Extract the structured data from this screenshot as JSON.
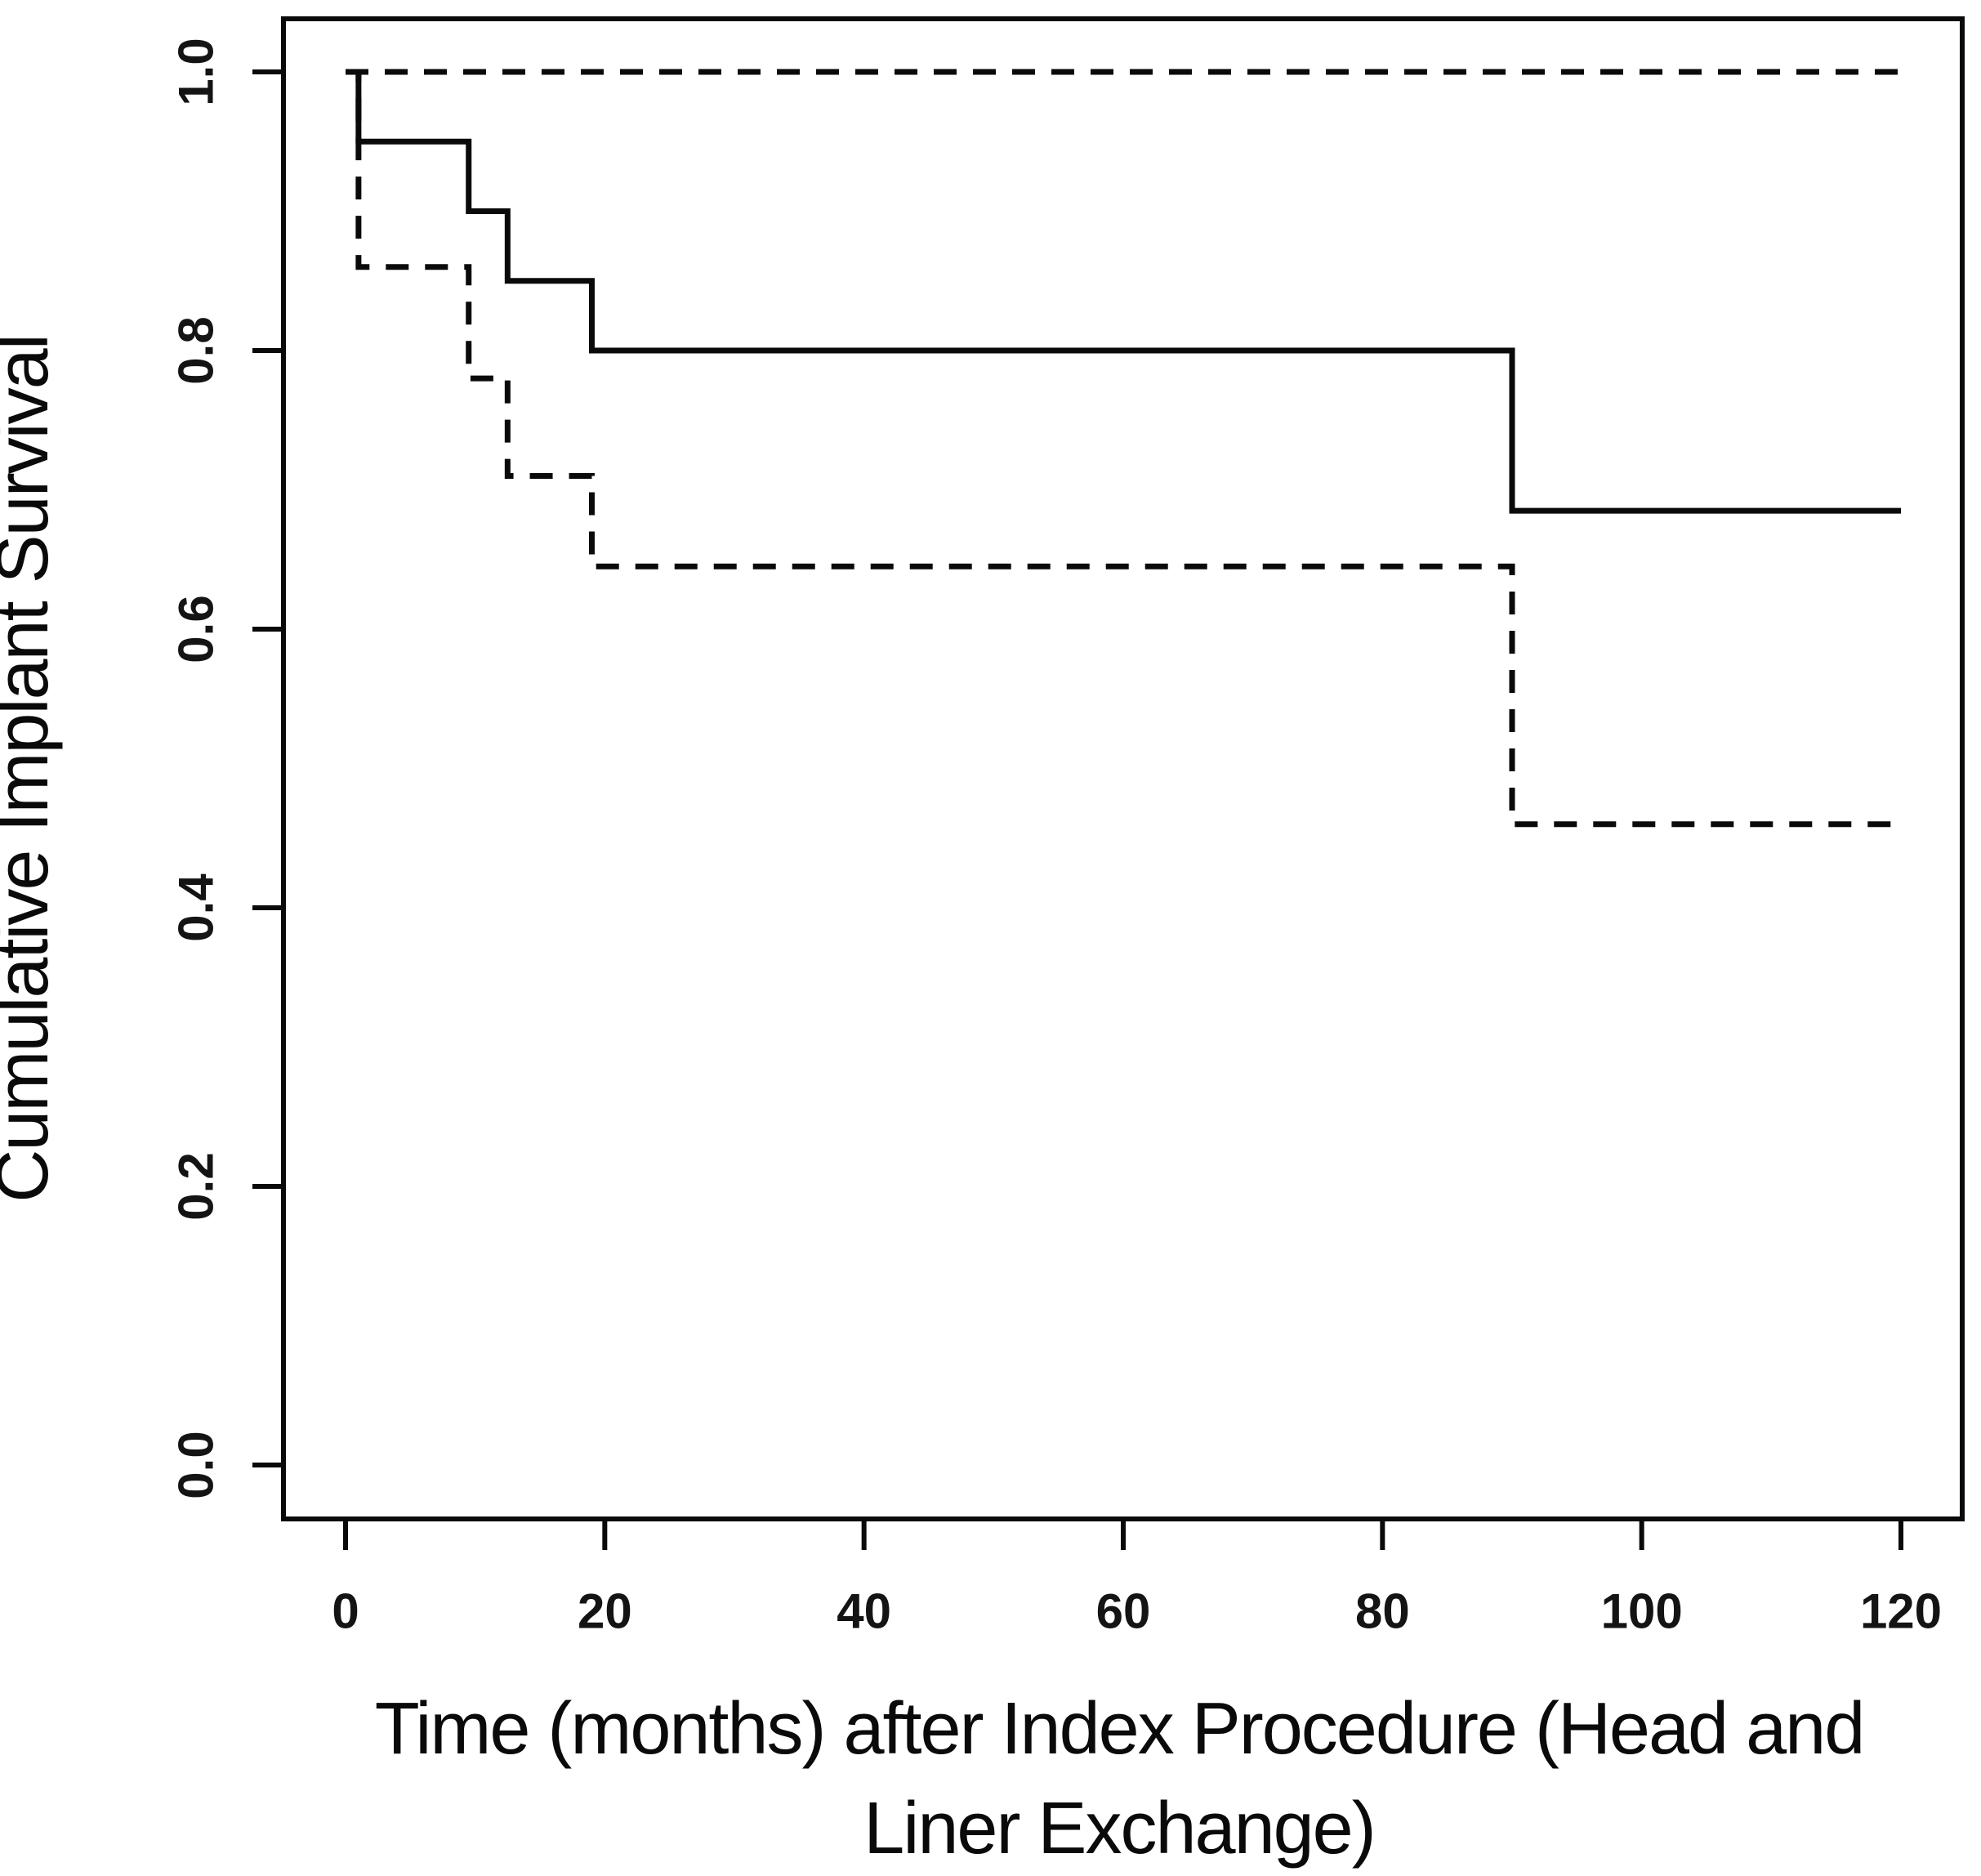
{
  "figure": {
    "background": "#ffffff",
    "ink_color": "#0a0a0a",
    "description": "Kaplan-Meier cumulative implant survival curve with dashed 95% confidence interval bands"
  },
  "axes": {
    "x": {
      "title_lines": [
        "Time (months) after Index Procedure (Head and",
        "Liner Exchange)"
      ],
      "tick_labels": [
        "0",
        "20",
        "40",
        "60",
        "80",
        "100",
        "120"
      ],
      "tick_values": [
        0,
        20,
        40,
        60,
        80,
        100,
        120
      ],
      "range": [
        0,
        120
      ]
    },
    "y": {
      "title": "Cumulative Implant Survival",
      "tick_labels": [
        "1.0",
        "0.8",
        "0.6",
        "0.4",
        "0.2",
        "0.0"
      ],
      "tick_values": [
        1.0,
        0.8,
        0.6,
        0.4,
        0.2,
        0.0
      ],
      "range": [
        0,
        1
      ]
    }
  },
  "chart_data": {
    "type": "line",
    "subtype": "kaplan-meier-step",
    "title": "",
    "xlabel": "Time (months) after Index Procedure (Head and Liner Exchange)",
    "ylabel": "Cumulative Implant Survival",
    "xlim": [
      0,
      120
    ],
    "ylim": [
      0,
      1
    ],
    "grid": false,
    "legend": "none",
    "event_times_months": [
      1,
      9.5,
      12.5,
      19,
      90
    ],
    "series": [
      {
        "name": "KM survival estimate",
        "style": "solid",
        "points": [
          [
            0,
            1.0
          ],
          [
            1,
            1.0
          ],
          [
            1,
            0.95
          ],
          [
            9.5,
            0.95
          ],
          [
            9.5,
            0.9
          ],
          [
            12.5,
            0.9
          ],
          [
            12.5,
            0.85
          ],
          [
            19,
            0.85
          ],
          [
            19,
            0.8
          ],
          [
            90,
            0.8
          ],
          [
            90,
            0.685
          ],
          [
            120,
            0.685
          ]
        ]
      },
      {
        "name": "95% CI upper",
        "style": "dashed",
        "points": [
          [
            0,
            1.0
          ],
          [
            120,
            1.0
          ]
        ]
      },
      {
        "name": "95% CI lower",
        "style": "dashed",
        "points": [
          [
            0,
            1.0
          ],
          [
            1,
            1.0
          ],
          [
            1,
            0.86
          ],
          [
            9.5,
            0.86
          ],
          [
            9.5,
            0.78
          ],
          [
            12.5,
            0.78
          ],
          [
            12.5,
            0.71
          ],
          [
            19,
            0.71
          ],
          [
            19,
            0.645
          ],
          [
            90,
            0.645
          ],
          [
            90,
            0.46
          ],
          [
            120,
            0.46
          ]
        ]
      }
    ]
  }
}
